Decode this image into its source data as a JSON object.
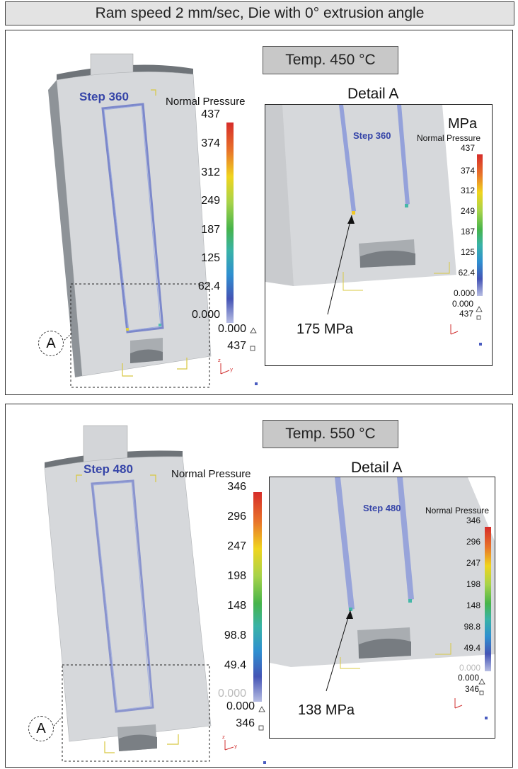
{
  "header": {
    "title": "Ram speed 2 mm/sec, Die with 0° extrusion angle"
  },
  "panels": [
    {
      "temperature": "Temp. 450 °C",
      "main": {
        "step": "Step  360",
        "legend_title": "Normal Pressure",
        "ticks": [
          "437",
          "374",
          "312",
          "249",
          "187",
          "125",
          "62.4",
          "0.000"
        ],
        "min_label": "0.000",
        "max_label": "437"
      },
      "detail": {
        "title": "Detail A",
        "unit": "MPa",
        "step": "Step  360",
        "legend_title": "Normal Pressure",
        "ticks": [
          "437",
          "374",
          "312",
          "249",
          "187",
          "125",
          "62.4",
          "0.000"
        ],
        "min_label": "0.000",
        "max_label": "437",
        "annotation": "175 MPa"
      },
      "callout": "A"
    },
    {
      "temperature": "Temp. 550 °C",
      "main": {
        "step": "Step  480",
        "legend_title": "Normal Pressure",
        "ticks": [
          "346",
          "296",
          "247",
          "198",
          "148",
          "98.8",
          "49.4",
          "0.000"
        ],
        "min_label": "0.000",
        "max_label": "346"
      },
      "detail": {
        "title": "Detail A",
        "step": "Step  480",
        "legend_title": "Normal Pressure",
        "ticks": [
          "346",
          "296",
          "247",
          "198",
          "148",
          "98.8",
          "49.4",
          "0.000"
        ],
        "min_label": "0.000",
        "max_label": "346",
        "annotation": "138 MPa"
      },
      "callout": "A"
    }
  ]
}
